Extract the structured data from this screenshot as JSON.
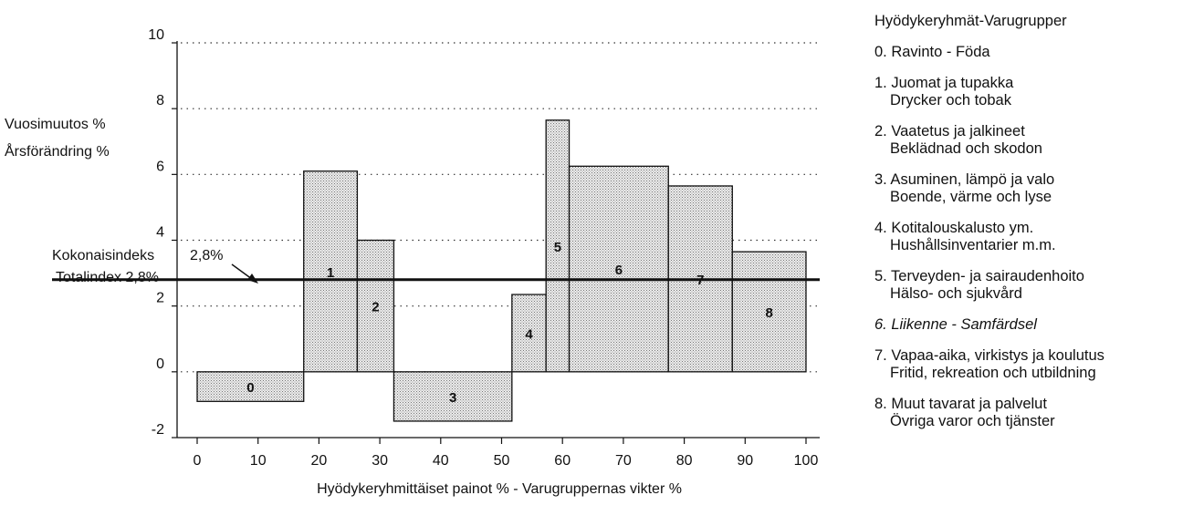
{
  "chart_data": {
    "type": "bar",
    "subtype": "variable-width bar (weights on x axis)",
    "xlabel": "Hyödykeryhmittäiset painot % - Varugruppernas vikter %",
    "ylabel_fi": "Vuosimuutos %",
    "ylabel_sv": "Årsförändring %",
    "xlim": [
      0,
      100
    ],
    "ylim": [
      -2,
      10
    ],
    "x_ticks": [
      "0",
      "10",
      "20",
      "30",
      "40",
      "50",
      "60",
      "70",
      "80",
      "90",
      "100"
    ],
    "y_ticks": [
      "-2",
      "0",
      "2",
      "4",
      "6",
      "8",
      "10"
    ],
    "grid": "dotted horizontal at 2, 4, 6, 8, 10",
    "bars": [
      {
        "label": "0",
        "x_start": 0,
        "x_end": 17.5,
        "value": -0.9
      },
      {
        "label": "1",
        "x_start": 17.5,
        "x_end": 26.3,
        "value": 6.1
      },
      {
        "label": "2",
        "x_start": 26.3,
        "x_end": 32.3,
        "value": 4.0
      },
      {
        "label": "3",
        "x_start": 32.3,
        "x_end": 51.7,
        "value": -1.5
      },
      {
        "label": "4",
        "x_start": 51.7,
        "x_end": 57.3,
        "value": 2.35
      },
      {
        "label": "5",
        "x_start": 57.3,
        "x_end": 61.1,
        "value": 7.65
      },
      {
        "label": "6",
        "x_start": 61.1,
        "x_end": 77.4,
        "value": 6.25
      },
      {
        "label": "7",
        "x_start": 77.4,
        "x_end": 87.9,
        "value": 5.65
      },
      {
        "label": "8",
        "x_start": 87.9,
        "x_end": 100,
        "value": 3.65
      }
    ],
    "reference_line": {
      "value": 2.8,
      "label_fi": "Kokonaisindeks",
      "label_sv": "Totalindex 2,8%",
      "value_label": "2,8%"
    }
  },
  "legend": {
    "title": "Hyödykeryhmät-Varugrupper",
    "items": [
      {
        "line1": "0. Ravinto -  Föda",
        "line2": ""
      },
      {
        "line1": "1. Juomat ja tupakka",
        "line2": "Drycker och tobak"
      },
      {
        "line1": "2. Vaatetus ja jalkineet",
        "line2": "Beklädnad och skodon"
      },
      {
        "line1": "3. Asuminen, lämpö ja valo",
        "line2": "Boende, värme och lyse"
      },
      {
        "line1": "4. Kotitalouskalusto ym.",
        "line2": "Hushållsinventarier m.m."
      },
      {
        "line1": "5. Terveyden- ja sairaudenhoito",
        "line2": "Hälso- och sjukvård"
      },
      {
        "line1": "6. Liikenne - Samfärdsel",
        "line2": "",
        "italic": true
      },
      {
        "line1": "7. Vapaa-aika, virkistys ja koulutus",
        "line2": "Fritid, rekreation och utbildning"
      },
      {
        "line1": "8. Muut tavarat ja palvelut",
        "line2": "Övriga varor och tjänster"
      }
    ]
  },
  "colors": {
    "bar_fill": "#d8d8d8",
    "bar_stroke": "#111111",
    "line": "#111111",
    "grid": "#333333"
  }
}
